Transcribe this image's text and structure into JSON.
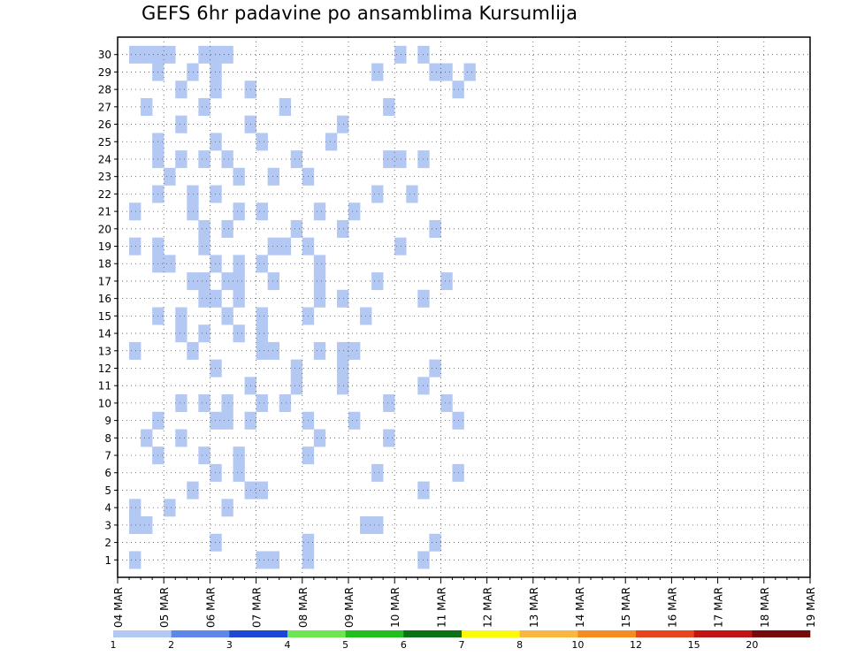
{
  "title": "GEFS 6hr padavine po ansamblima Kursumlija",
  "chart_data": {
    "type": "heatmap",
    "title": "GEFS 6hr padavine po ansamblima Kursumlija",
    "xlabel": "",
    "ylabel": "",
    "x_ticks": [
      "04 MAR",
      "05 MAR",
      "06 MAR",
      "07 MAR",
      "08 MAR",
      "09 MAR",
      "10 MAR",
      "11 MAR",
      "12 MAR",
      "13 MAR",
      "14 MAR",
      "15 MAR",
      "16 MAR",
      "17 MAR",
      "18 MAR",
      "19 MAR"
    ],
    "y_ticks": [
      "1",
      "2",
      "3",
      "4",
      "5",
      "6",
      "7",
      "8",
      "9",
      "10",
      "11",
      "12",
      "13",
      "14",
      "15",
      "16",
      "17",
      "18",
      "19",
      "20",
      "21",
      "22",
      "23",
      "24",
      "25",
      "26",
      "27",
      "28",
      "29",
      "30"
    ],
    "x_unit": "6-hour step (0 = 04 MAR 00z, 4 steps per day)",
    "grid": true,
    "legend_position": "bottom",
    "colorbar": {
      "labels": [
        "1",
        "2",
        "3",
        "4",
        "5",
        "6",
        "7",
        "8",
        "10",
        "12",
        "15",
        "20"
      ],
      "colors": [
        "#b4c8f4",
        "#5f87e9",
        "#1e46d7",
        "#6ee653",
        "#1fbf1f",
        "#0a7114",
        "#fafa0a",
        "#f9b740",
        "#f58c1e",
        "#e6461e",
        "#c31414",
        "#780a0a"
      ]
    },
    "cells": [
      [
        30,
        1,
        3,
        3
      ],
      [
        30,
        1,
        3,
        1
      ],
      [
        30,
        1,
        3,
        4
      ],
      [
        30,
        1,
        3,
        2
      ],
      [
        30,
        1,
        3,
        7
      ],
      [
        30,
        1,
        3,
        9
      ],
      [
        30,
        1,
        3,
        8
      ],
      [
        30,
        1,
        3,
        24
      ],
      [
        30,
        1,
        3,
        26
      ],
      [
        29,
        1,
        3,
        3
      ],
      [
        29,
        1,
        3,
        6
      ],
      [
        29,
        1,
        3,
        8
      ],
      [
        29,
        1,
        3,
        22
      ],
      [
        29,
        1,
        3,
        27
      ],
      [
        29,
        1,
        3,
        28
      ],
      [
        29,
        1,
        3,
        30
      ],
      [
        28,
        1,
        3,
        11
      ],
      [
        28,
        1,
        3,
        5
      ],
      [
        28,
        1,
        3,
        29
      ],
      [
        28,
        1,
        3,
        8
      ],
      [
        27,
        1,
        3,
        23
      ],
      [
        27,
        1,
        3,
        2
      ],
      [
        27,
        1,
        3,
        14
      ],
      [
        27,
        1,
        3,
        7
      ],
      [
        26,
        1,
        3,
        19
      ],
      [
        26,
        1,
        3,
        11
      ],
      [
        26,
        1,
        3,
        5
      ],
      [
        25,
        1,
        3,
        12
      ],
      [
        25,
        1,
        3,
        18
      ],
      [
        25,
        1,
        3,
        8
      ],
      [
        25,
        1,
        3,
        3
      ],
      [
        24,
        1,
        3,
        26
      ],
      [
        24,
        1,
        3,
        7
      ],
      [
        24,
        1,
        3,
        24
      ],
      [
        24,
        1,
        3,
        3
      ],
      [
        24,
        1,
        3,
        5
      ],
      [
        24,
        1,
        3,
        9
      ],
      [
        24,
        1,
        3,
        15
      ],
      [
        24,
        1,
        3,
        23
      ],
      [
        23,
        1,
        3,
        10
      ],
      [
        23,
        1,
        3,
        13
      ],
      [
        23,
        1,
        3,
        16
      ],
      [
        23,
        1,
        3,
        4
      ],
      [
        22,
        1,
        3,
        6
      ],
      [
        22,
        1,
        3,
        22
      ],
      [
        22,
        1,
        3,
        3
      ],
      [
        22,
        1,
        3,
        8
      ],
      [
        22,
        1,
        3,
        25
      ],
      [
        21,
        1,
        3,
        10
      ],
      [
        21,
        1,
        3,
        12
      ],
      [
        21,
        1,
        3,
        17
      ],
      [
        21,
        1,
        3,
        1
      ],
      [
        21,
        1,
        3,
        6
      ],
      [
        21,
        1,
        3,
        20
      ],
      [
        20,
        1,
        3,
        15
      ],
      [
        20,
        1,
        3,
        27
      ],
      [
        20,
        1,
        3,
        7
      ],
      [
        20,
        1,
        3,
        9
      ],
      [
        20,
        1,
        3,
        19
      ],
      [
        19,
        1,
        3,
        13
      ],
      [
        19,
        1,
        3,
        14
      ],
      [
        19,
        1,
        3,
        16
      ],
      [
        19,
        1,
        3,
        3
      ],
      [
        19,
        1,
        3,
        1
      ],
      [
        19,
        1,
        3,
        7
      ],
      [
        19,
        1,
        3,
        24
      ],
      [
        18,
        1,
        3,
        12
      ],
      [
        18,
        1,
        3,
        3
      ],
      [
        18,
        1,
        3,
        4
      ],
      [
        18,
        1,
        3,
        10
      ],
      [
        18,
        1,
        3,
        17
      ],
      [
        18,
        1,
        3,
        8
      ],
      [
        17,
        1,
        3,
        17
      ],
      [
        17,
        1,
        3,
        6
      ],
      [
        17,
        1,
        3,
        7
      ],
      [
        17,
        1,
        3,
        13
      ],
      [
        17,
        1,
        3,
        9
      ],
      [
        17,
        1,
        3,
        28
      ],
      [
        17,
        1,
        3,
        22
      ],
      [
        17,
        1,
        3,
        10
      ],
      [
        16,
        1,
        3,
        26
      ],
      [
        16,
        1,
        3,
        8
      ],
      [
        16,
        1,
        3,
        19
      ],
      [
        16,
        1,
        3,
        17
      ],
      [
        16,
        1,
        3,
        10
      ],
      [
        16,
        1,
        3,
        7
      ],
      [
        15,
        1,
        3,
        21
      ],
      [
        15,
        1,
        3,
        9
      ],
      [
        15,
        1,
        3,
        12
      ],
      [
        15,
        1,
        3,
        16
      ],
      [
        15,
        1,
        3,
        3
      ],
      [
        15,
        1,
        3,
        5
      ],
      [
        14,
        1,
        3,
        5
      ],
      [
        14,
        1,
        3,
        12
      ],
      [
        14,
        1,
        3,
        10
      ],
      [
        14,
        1,
        3,
        7
      ],
      [
        13,
        1,
        3,
        6
      ],
      [
        13,
        1,
        3,
        12
      ],
      [
        13,
        1,
        3,
        19
      ],
      [
        13,
        1,
        3,
        1
      ],
      [
        13,
        1,
        3,
        13
      ],
      [
        13,
        1,
        3,
        17
      ],
      [
        13,
        1,
        3,
        20
      ],
      [
        12,
        1,
        3,
        27
      ],
      [
        12,
        1,
        3,
        15
      ],
      [
        12,
        1,
        3,
        19
      ],
      [
        12,
        1,
        3,
        8
      ],
      [
        11,
        1,
        3,
        19
      ],
      [
        11,
        1,
        3,
        11
      ],
      [
        11,
        1,
        3,
        15
      ],
      [
        11,
        1,
        3,
        26
      ],
      [
        10,
        1,
        3,
        5
      ],
      [
        10,
        1,
        3,
        12
      ],
      [
        10,
        1,
        3,
        7
      ],
      [
        10,
        1,
        3,
        9
      ],
      [
        10,
        1,
        3,
        28
      ],
      [
        10,
        1,
        3,
        14
      ],
      [
        10,
        1,
        3,
        23
      ],
      [
        9,
        1,
        3,
        16
      ],
      [
        9,
        1,
        3,
        3
      ],
      [
        9,
        1,
        3,
        29
      ],
      [
        9,
        1,
        3,
        9
      ],
      [
        9,
        1,
        3,
        11
      ],
      [
        9,
        1,
        3,
        20
      ],
      [
        9,
        1,
        3,
        8
      ],
      [
        8,
        1,
        3,
        23
      ],
      [
        8,
        1,
        3,
        17
      ],
      [
        8,
        1,
        3,
        2
      ],
      [
        8,
        1,
        3,
        5
      ],
      [
        7,
        1,
        3,
        16
      ],
      [
        7,
        1,
        3,
        10
      ],
      [
        7,
        1,
        3,
        7
      ],
      [
        7,
        1,
        3,
        3
      ],
      [
        6,
        1,
        3,
        29
      ],
      [
        6,
        1,
        3,
        22
      ],
      [
        6,
        1,
        3,
        8
      ],
      [
        6,
        1,
        3,
        10
      ],
      [
        5,
        1,
        3,
        11
      ],
      [
        5,
        1,
        3,
        26
      ],
      [
        5,
        1,
        3,
        12
      ],
      [
        5,
        1,
        3,
        6
      ],
      [
        4,
        1,
        3,
        1
      ],
      [
        4,
        1,
        3,
        4
      ],
      [
        4,
        1,
        3,
        9
      ],
      [
        3,
        1,
        3,
        22
      ],
      [
        3,
        1,
        3,
        2
      ],
      [
        3,
        1,
        3,
        1
      ],
      [
        3,
        1,
        3,
        21
      ],
      [
        2,
        1,
        3,
        8
      ],
      [
        2,
        1,
        3,
        27
      ],
      [
        2,
        1,
        3,
        16
      ],
      [
        1,
        1,
        3,
        26
      ],
      [
        1,
        1,
        3,
        12
      ],
      [
        1,
        1,
        3,
        13
      ],
      [
        1,
        1,
        3,
        1
      ],
      [
        1,
        1,
        3,
        16
      ]
    ]
  }
}
